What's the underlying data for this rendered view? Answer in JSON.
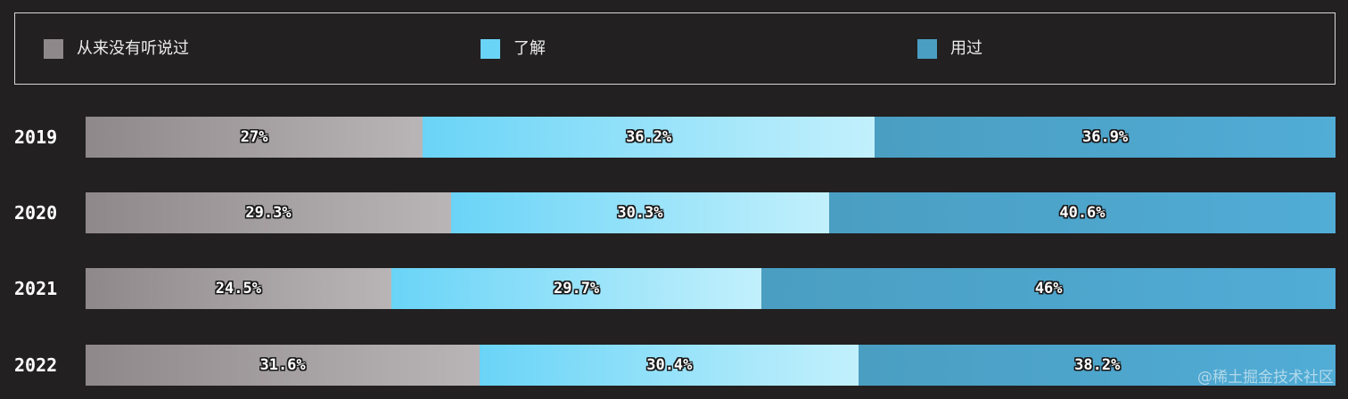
{
  "colors": {
    "never_heard": "#8f888b",
    "know_about": "#6ad4f7",
    "used": "#4a9ec2",
    "background": "#222021"
  },
  "legend": [
    {
      "key": "never_heard",
      "label": "从来没有听说过"
    },
    {
      "key": "know_about",
      "label": "了解"
    },
    {
      "key": "used",
      "label": "用过"
    }
  ],
  "chart_data": {
    "type": "bar",
    "orientation": "horizontal",
    "stacked": true,
    "normalized": true,
    "categories": [
      "2019",
      "2020",
      "2021",
      "2022"
    ],
    "series": [
      {
        "name": "从来没有听说过",
        "values": [
          27,
          29.3,
          24.5,
          31.6
        ],
        "labels": [
          "27%",
          "29.3%",
          "24.5%",
          "31.6%"
        ]
      },
      {
        "name": "了解",
        "values": [
          36.2,
          30.3,
          29.7,
          30.4
        ],
        "labels": [
          "36.2%",
          "30.3%",
          "29.7%",
          "30.4%"
        ]
      },
      {
        "name": "用过",
        "values": [
          36.9,
          40.6,
          46,
          38.2
        ],
        "labels": [
          "36.9%",
          "40.6%",
          "46%",
          "38.2%"
        ]
      }
    ],
    "legend_position": "top",
    "grid": false
  },
  "watermark": "@稀土掘金技术社区"
}
